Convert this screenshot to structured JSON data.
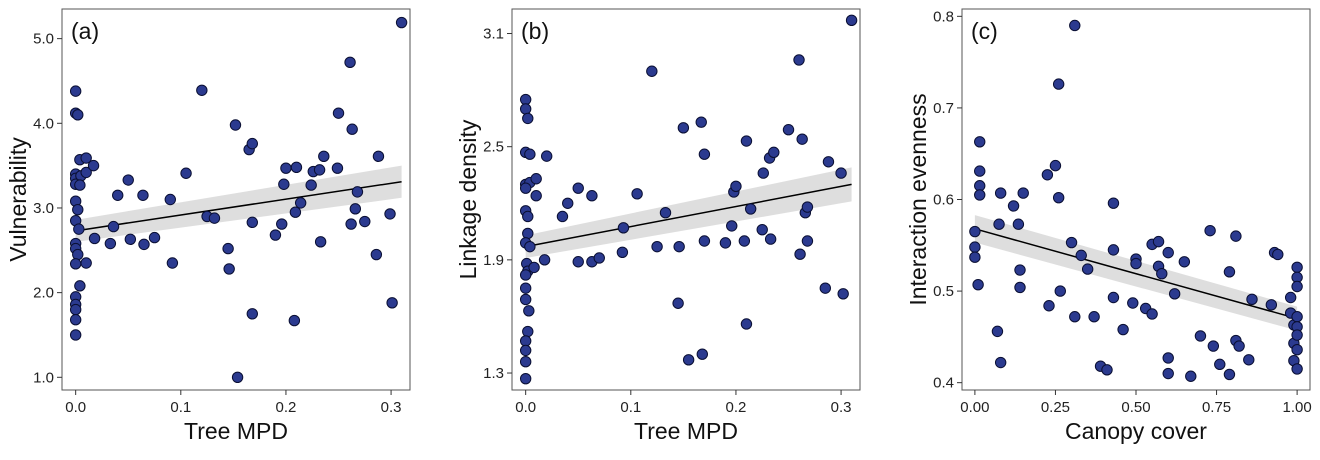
{
  "chart_data": [
    {
      "type": "scatter",
      "panel_label": "(a)",
      "xlabel": "Tree MPD",
      "ylabel": "Vulnerability",
      "xlim": [
        -0.013,
        0.318
      ],
      "ylim": [
        0.85,
        5.35
      ],
      "x_ticks": [
        0.0,
        0.1,
        0.2,
        0.3
      ],
      "x_tick_labels": [
        "0.0",
        "0.1",
        "0.2",
        "0.3"
      ],
      "y_ticks": [
        1.0,
        2.0,
        3.0,
        4.0,
        5.0
      ],
      "y_tick_labels": [
        "1.0",
        "2.0",
        "3.0",
        "4.0",
        "5.0"
      ],
      "fit": {
        "x0": 0.0,
        "y0": 2.73,
        "x1": 0.31,
        "y1": 3.31
      },
      "ci": {
        "low0": 2.6,
        "high0": 2.86,
        "low1": 3.12,
        "high1": 3.5
      },
      "points": [
        [
          0,
          4.38
        ],
        [
          0,
          4.12
        ],
        [
          0.002,
          4.1
        ],
        [
          0,
          3.4
        ],
        [
          0,
          3.35
        ],
        [
          0.005,
          3.38
        ],
        [
          0,
          3.28
        ],
        [
          0.004,
          3.27
        ],
        [
          0,
          3.08
        ],
        [
          0.002,
          2.98
        ],
        [
          0,
          2.85
        ],
        [
          0.003,
          2.75
        ],
        [
          0,
          2.58
        ],
        [
          0,
          2.52
        ],
        [
          0.002,
          2.45
        ],
        [
          0,
          2.34
        ],
        [
          0.004,
          2.08
        ],
        [
          0,
          1.95
        ],
        [
          0,
          1.86
        ],
        [
          0,
          1.8
        ],
        [
          0,
          1.68
        ],
        [
          0,
          1.5
        ],
        [
          0.004,
          3.57
        ],
        [
          0.01,
          3.59
        ],
        [
          0.01,
          3.42
        ],
        [
          0.017,
          3.5
        ],
        [
          0.01,
          2.35
        ],
        [
          0.018,
          2.64
        ],
        [
          0.033,
          2.58
        ],
        [
          0.036,
          2.78
        ],
        [
          0.04,
          3.15
        ],
        [
          0.05,
          3.33
        ],
        [
          0.052,
          2.63
        ],
        [
          0.064,
          3.15
        ],
        [
          0.065,
          2.57
        ],
        [
          0.075,
          2.65
        ],
        [
          0.09,
          3.1
        ],
        [
          0.092,
          2.35
        ],
        [
          0.105,
          3.41
        ],
        [
          0.12,
          4.39
        ],
        [
          0.125,
          2.9
        ],
        [
          0.132,
          2.88
        ],
        [
          0.145,
          2.52
        ],
        [
          0.146,
          2.28
        ],
        [
          0.152,
          3.98
        ],
        [
          0.154,
          1.0
        ],
        [
          0.165,
          3.69
        ],
        [
          0.168,
          3.76
        ],
        [
          0.168,
          2.83
        ],
        [
          0.168,
          1.75
        ],
        [
          0.19,
          2.68
        ],
        [
          0.196,
          2.81
        ],
        [
          0.198,
          3.28
        ],
        [
          0.2,
          3.47
        ],
        [
          0.208,
          1.67
        ],
        [
          0.209,
          2.95
        ],
        [
          0.21,
          3.48
        ],
        [
          0.214,
          3.06
        ],
        [
          0.224,
          3.27
        ],
        [
          0.226,
          3.43
        ],
        [
          0.232,
          3.45
        ],
        [
          0.233,
          2.6
        ],
        [
          0.236,
          3.61
        ],
        [
          0.249,
          3.47
        ],
        [
          0.25,
          4.12
        ],
        [
          0.261,
          4.72
        ],
        [
          0.262,
          2.81
        ],
        [
          0.263,
          3.93
        ],
        [
          0.266,
          2.99
        ],
        [
          0.268,
          3.19
        ],
        [
          0.275,
          2.84
        ],
        [
          0.286,
          2.45
        ],
        [
          0.288,
          3.61
        ],
        [
          0.299,
          2.93
        ],
        [
          0.301,
          1.88
        ],
        [
          0.31,
          5.19
        ]
      ]
    },
    {
      "type": "scatter",
      "panel_label": "(b)",
      "xlabel": "Tree MPD",
      "ylabel": "Linkage density",
      "xlim": [
        -0.013,
        0.318
      ],
      "ylim": [
        1.21,
        3.23
      ],
      "x_ticks": [
        0.0,
        0.1,
        0.2,
        0.3
      ],
      "x_tick_labels": [
        "0.0",
        "0.1",
        "0.2",
        "0.3"
      ],
      "y_ticks": [
        1.3,
        1.9,
        2.5,
        3.1
      ],
      "y_tick_labels": [
        "1.3",
        "1.9",
        "2.5",
        "3.1"
      ],
      "fit": {
        "x0": 0.0,
        "y0": 1.97,
        "x1": 0.31,
        "y1": 2.3
      },
      "ci": {
        "low0": 1.91,
        "high0": 2.03,
        "low1": 2.21,
        "high1": 2.39
      },
      "points": [
        [
          0,
          2.75
        ],
        [
          0,
          2.7
        ],
        [
          0.002,
          2.65
        ],
        [
          0,
          2.47
        ],
        [
          0.004,
          2.46
        ],
        [
          0,
          2.3
        ],
        [
          0.004,
          2.31
        ],
        [
          0,
          2.28
        ],
        [
          0,
          2.16
        ],
        [
          0.002,
          2.13
        ],
        [
          0.002,
          2.04
        ],
        [
          0,
          1.99
        ],
        [
          0.004,
          1.97
        ],
        [
          0.001,
          1.88
        ],
        [
          0.002,
          1.84
        ],
        [
          0,
          1.82
        ],
        [
          0,
          1.75
        ],
        [
          0,
          1.69
        ],
        [
          0.003,
          1.63
        ],
        [
          0.002,
          1.52
        ],
        [
          0,
          1.47
        ],
        [
          0,
          1.42
        ],
        [
          0,
          1.36
        ],
        [
          0,
          1.27
        ],
        [
          0.01,
          2.33
        ],
        [
          0.01,
          2.24
        ],
        [
          0.008,
          1.86
        ],
        [
          0.02,
          2.45
        ],
        [
          0.018,
          1.9
        ],
        [
          0.035,
          2.13
        ],
        [
          0.04,
          2.2
        ],
        [
          0.05,
          2.28
        ],
        [
          0.05,
          1.89
        ],
        [
          0.063,
          2.24
        ],
        [
          0.063,
          1.89
        ],
        [
          0.07,
          1.91
        ],
        [
          0.092,
          1.94
        ],
        [
          0.093,
          2.07
        ],
        [
          0.106,
          2.25
        ],
        [
          0.12,
          2.9
        ],
        [
          0.125,
          1.97
        ],
        [
          0.133,
          2.15
        ],
        [
          0.145,
          1.67
        ],
        [
          0.146,
          1.97
        ],
        [
          0.15,
          2.6
        ],
        [
          0.155,
          1.37
        ],
        [
          0.167,
          2.63
        ],
        [
          0.168,
          1.4
        ],
        [
          0.17,
          2.46
        ],
        [
          0.17,
          2.0
        ],
        [
          0.19,
          1.99
        ],
        [
          0.196,
          2.08
        ],
        [
          0.198,
          2.26
        ],
        [
          0.2,
          2.29
        ],
        [
          0.208,
          2.0
        ],
        [
          0.21,
          2.53
        ],
        [
          0.21,
          1.56
        ],
        [
          0.214,
          2.17
        ],
        [
          0.225,
          2.06
        ],
        [
          0.226,
          2.36
        ],
        [
          0.232,
          2.44
        ],
        [
          0.233,
          2.01
        ],
        [
          0.236,
          2.47
        ],
        [
          0.25,
          2.59
        ],
        [
          0.26,
          2.96
        ],
        [
          0.261,
          1.93
        ],
        [
          0.263,
          2.54
        ],
        [
          0.266,
          2.15
        ],
        [
          0.268,
          2.18
        ],
        [
          0.268,
          2.0
        ],
        [
          0.285,
          1.75
        ],
        [
          0.288,
          2.42
        ],
        [
          0.3,
          2.36
        ],
        [
          0.302,
          1.72
        ],
        [
          0.31,
          3.17
        ]
      ]
    },
    {
      "type": "scatter",
      "panel_label": "(c)",
      "xlabel": "Canopy cover",
      "ylabel": "Interaction evenness",
      "xlim": [
        -0.04,
        1.04
      ],
      "ylim": [
        0.392,
        0.808
      ],
      "x_ticks": [
        0.0,
        0.25,
        0.5,
        0.75,
        1.0
      ],
      "x_tick_labels": [
        "0.00",
        "0.25",
        "0.50",
        "0.75",
        "1.00"
      ],
      "y_ticks": [
        0.4,
        0.5,
        0.6,
        0.7,
        0.8
      ],
      "y_tick_labels": [
        "0.4",
        "0.5",
        "0.6",
        "0.7",
        "0.8"
      ],
      "fit": {
        "x0": 0.0,
        "y0": 0.568,
        "x1": 1.0,
        "y1": 0.47
      },
      "ci": {
        "low0": 0.553,
        "high0": 0.583,
        "low1": 0.457,
        "high1": 0.483
      },
      "points": [
        [
          0,
          0.565
        ],
        [
          0,
          0.548
        ],
        [
          0,
          0.537
        ],
        [
          0.01,
          0.507
        ],
        [
          0.015,
          0.663
        ],
        [
          0.015,
          0.631
        ],
        [
          0.015,
          0.615
        ],
        [
          0.015,
          0.605
        ],
        [
          0.07,
          0.456
        ],
        [
          0.075,
          0.573
        ],
        [
          0.08,
          0.607
        ],
        [
          0.08,
          0.422
        ],
        [
          0.12,
          0.593
        ],
        [
          0.135,
          0.573
        ],
        [
          0.14,
          0.523
        ],
        [
          0.14,
          0.504
        ],
        [
          0.15,
          0.607
        ],
        [
          0.225,
          0.627
        ],
        [
          0.23,
          0.484
        ],
        [
          0.25,
          0.637
        ],
        [
          0.26,
          0.726
        ],
        [
          0.26,
          0.602
        ],
        [
          0.265,
          0.5
        ],
        [
          0.3,
          0.553
        ],
        [
          0.31,
          0.472
        ],
        [
          0.31,
          0.79
        ],
        [
          0.33,
          0.539
        ],
        [
          0.35,
          0.524
        ],
        [
          0.37,
          0.472
        ],
        [
          0.39,
          0.418
        ],
        [
          0.41,
          0.414
        ],
        [
          0.43,
          0.596
        ],
        [
          0.43,
          0.545
        ],
        [
          0.43,
          0.493
        ],
        [
          0.46,
          0.458
        ],
        [
          0.49,
          0.487
        ],
        [
          0.5,
          0.535
        ],
        [
          0.5,
          0.53
        ],
        [
          0.53,
          0.481
        ],
        [
          0.55,
          0.475
        ],
        [
          0.55,
          0.551
        ],
        [
          0.57,
          0.554
        ],
        [
          0.57,
          0.527
        ],
        [
          0.58,
          0.519
        ],
        [
          0.6,
          0.542
        ],
        [
          0.6,
          0.41
        ],
        [
          0.6,
          0.427
        ],
        [
          0.62,
          0.497
        ],
        [
          0.65,
          0.532
        ],
        [
          0.67,
          0.407
        ],
        [
          0.7,
          0.451
        ],
        [
          0.73,
          0.566
        ],
        [
          0.74,
          0.44
        ],
        [
          0.76,
          0.42
        ],
        [
          0.79,
          0.521
        ],
        [
          0.79,
          0.409
        ],
        [
          0.81,
          0.56
        ],
        [
          0.81,
          0.446
        ],
        [
          0.82,
          0.44
        ],
        [
          0.85,
          0.425
        ],
        [
          0.86,
          0.491
        ],
        [
          0.92,
          0.485
        ],
        [
          0.93,
          0.542
        ],
        [
          0.94,
          0.54
        ],
        [
          0.98,
          0.493
        ],
        [
          0.98,
          0.476
        ],
        [
          0.99,
          0.463
        ],
        [
          0.99,
          0.443
        ],
        [
          0.99,
          0.424
        ],
        [
          1.0,
          0.526
        ],
        [
          1.0,
          0.515
        ],
        [
          1.0,
          0.505
        ],
        [
          1.0,
          0.472
        ],
        [
          1.0,
          0.461
        ],
        [
          1.0,
          0.452
        ],
        [
          1.0,
          0.436
        ],
        [
          1.0,
          0.415
        ]
      ]
    }
  ]
}
